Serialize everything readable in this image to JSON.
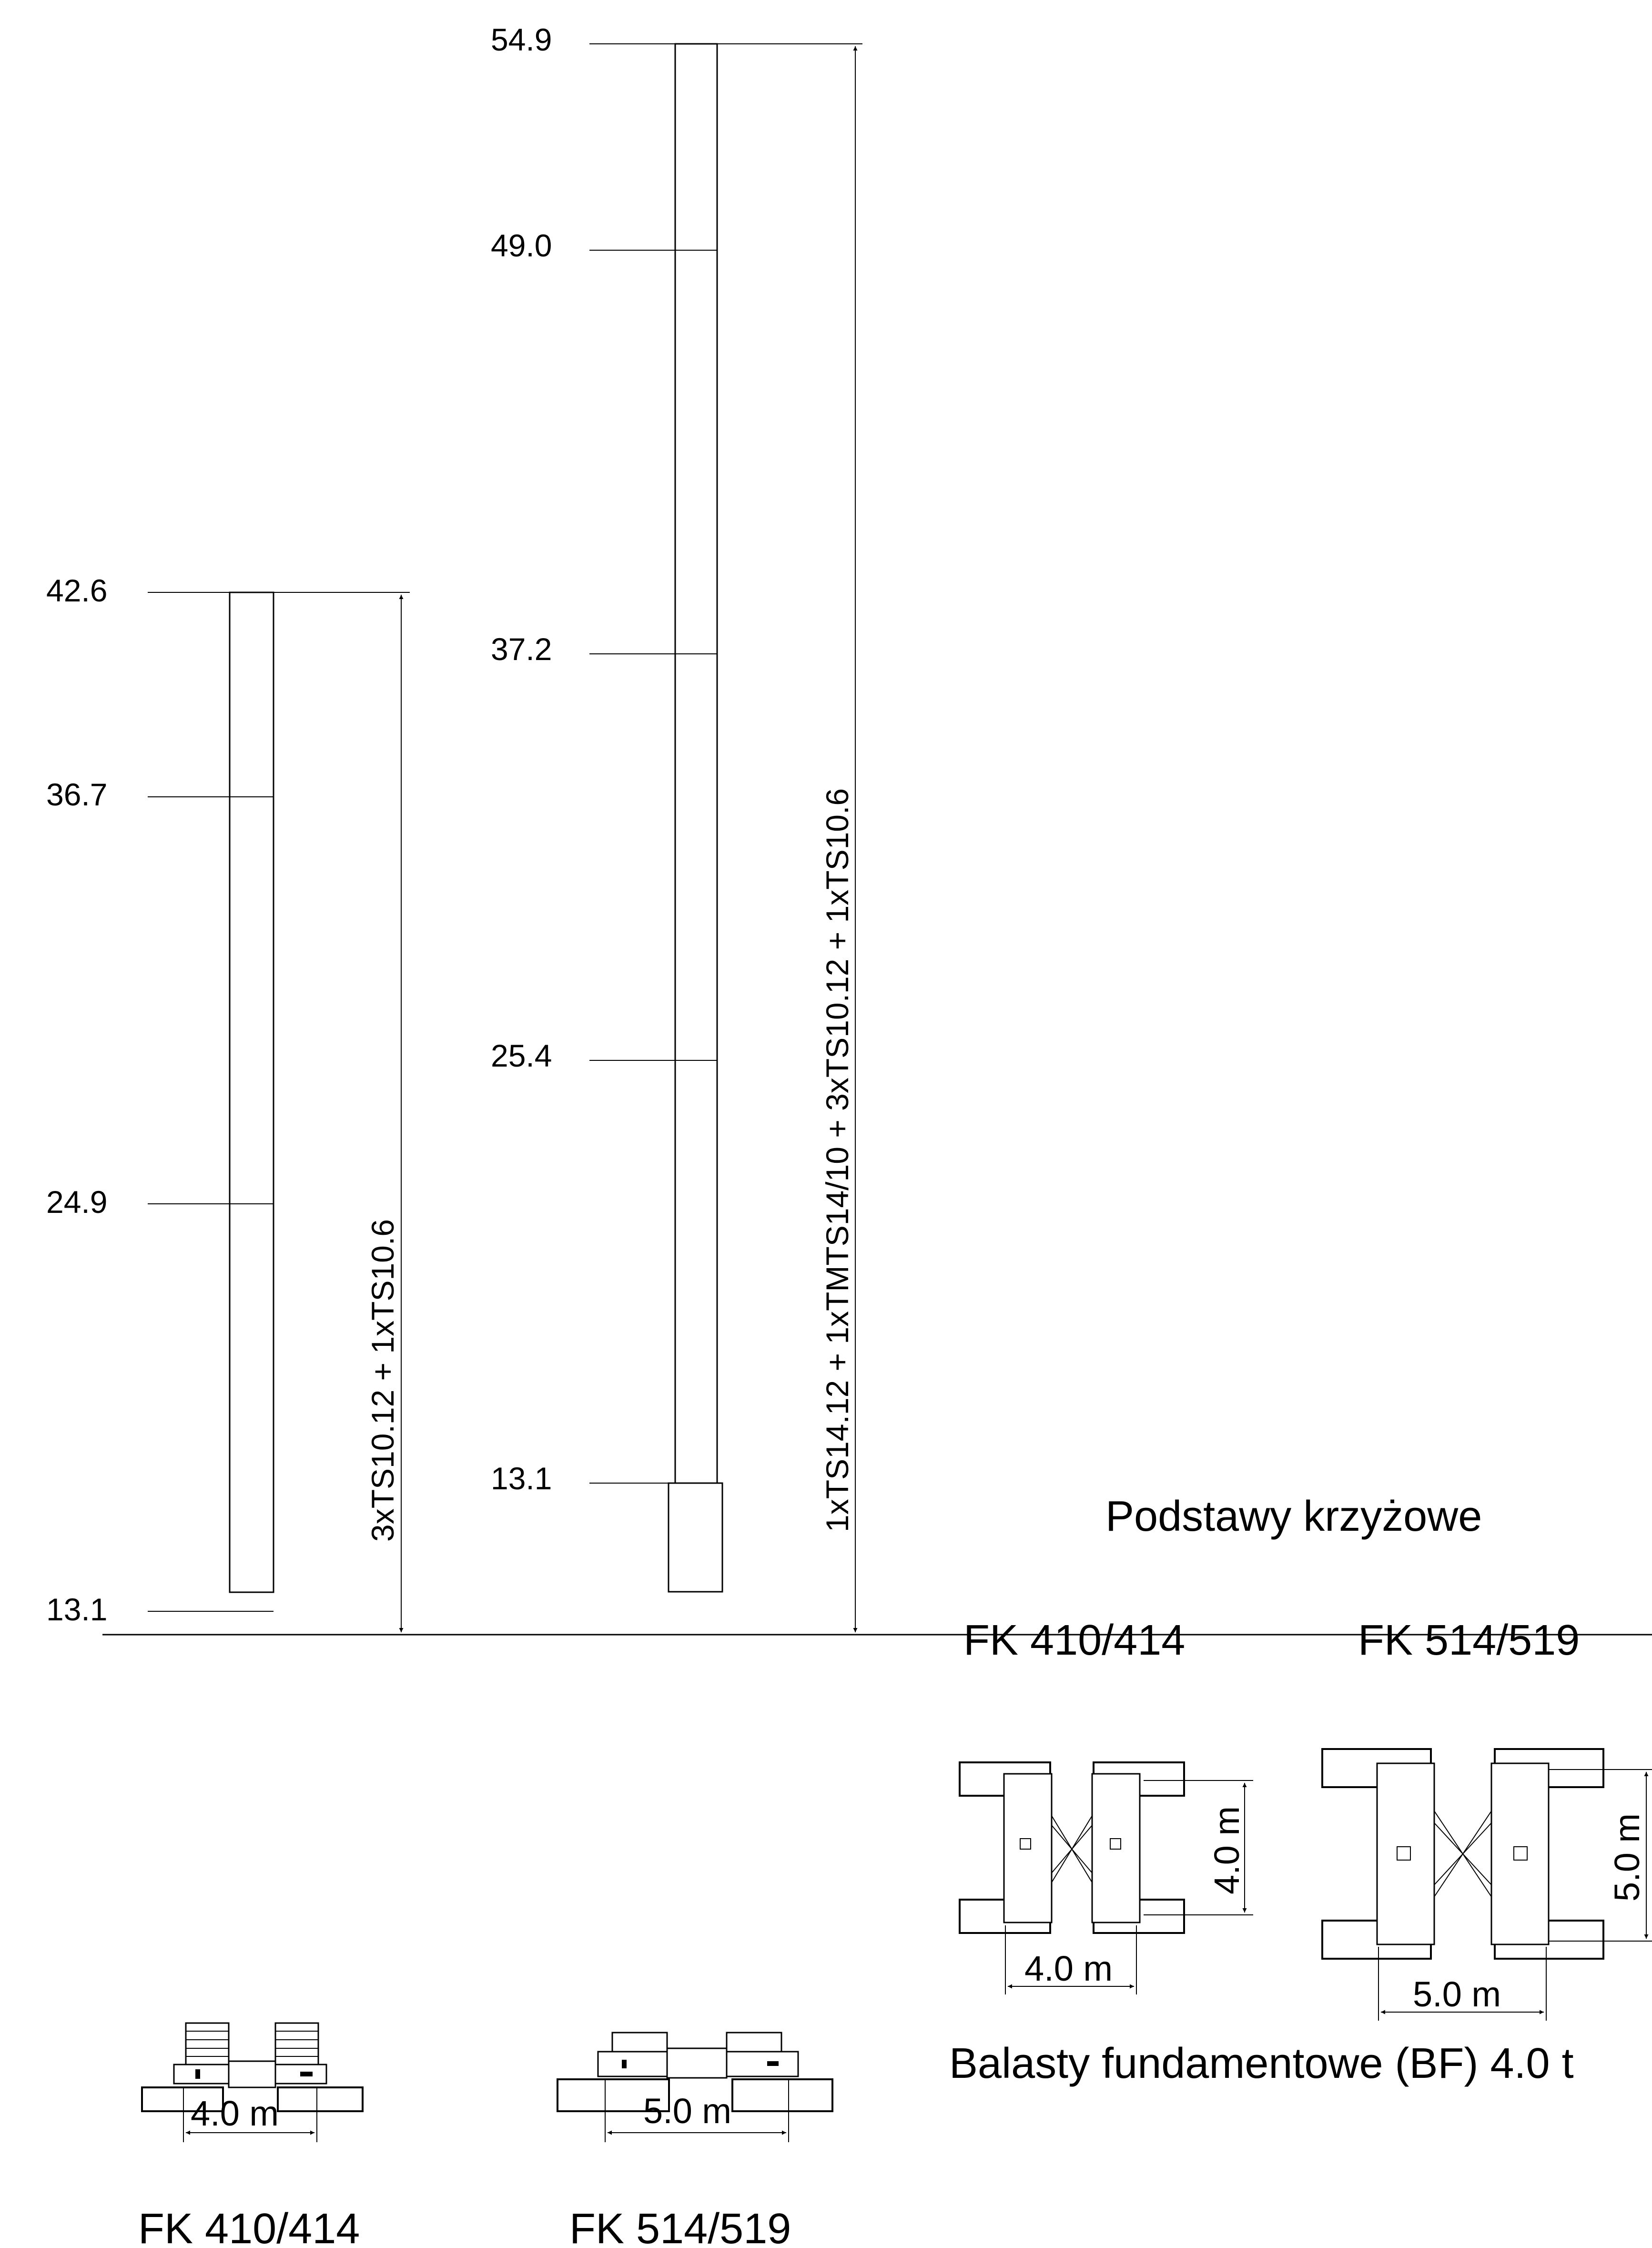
{
  "mast_left": {
    "model": "FK 410/414",
    "sections_label": "3xTS10.12 + 1xTS10.6",
    "base_width": "4.0 m",
    "heights": [
      "42.6",
      "36.7",
      "24.9",
      "13.1"
    ]
  },
  "mast_right": {
    "model": "FK 514/519",
    "sections_label": "1xTS14.12 + 1xTMTS14/10 + 3xTS10.12 + 1xTS10.6",
    "base_width": "5.0 m",
    "heights": [
      "54.9",
      "49.0",
      "37.2",
      "25.4",
      "13.1"
    ]
  },
  "cross_bases": {
    "title": "Podstawy krzyżowe",
    "items": [
      {
        "model": "FK 410/414",
        "width": "4.0 m",
        "depth": "4.0 m"
      },
      {
        "model": "FK 514/519",
        "width": "5.0 m",
        "depth": "5.0 m"
      }
    ]
  },
  "ballast_note": "Balasty fundamentowe (BF) 4.0 t"
}
